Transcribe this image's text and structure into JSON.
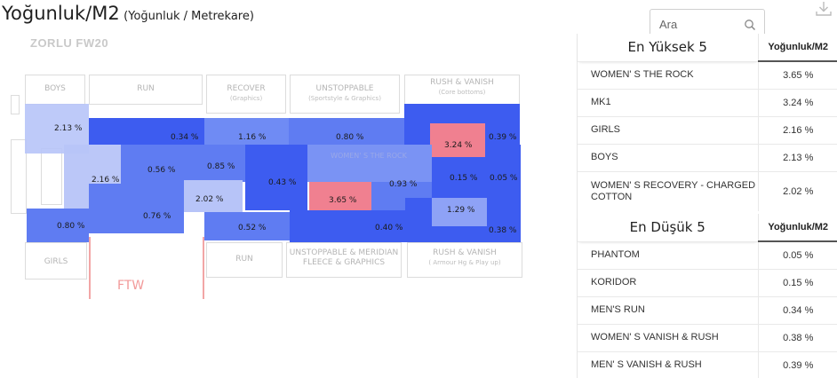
{
  "header": {
    "title": "Yoğunluk/M2",
    "subtitle": "(Yoğunluk / Metrekare)"
  },
  "search": {
    "placeholder": "Ara"
  },
  "floorplan": {
    "store_name": "ZORLU FW20",
    "walls": {
      "boys": "BOYS",
      "run_top": "RUN",
      "recover": "RECOVER",
      "recover_sub": "(Graphics)",
      "unstoppable": "UNSTOPPABLE",
      "unstoppable_sub": "(Sportstyle & Graphics)",
      "rush_top": "RUSH & VANISH",
      "rush_top_sub": "(Core bottoms)",
      "girls": "GIRLS",
      "run_bottom": "RUN",
      "meridian": "UNSTOPPABLE & MERIDIAN",
      "meridian_sub": "FLEECE & GRAPHICS",
      "rush_bottom": "RUSH & VANISH",
      "rush_bottom_sub": "( Armour Hg & Play up)",
      "ftw": "FTW",
      "ghost": "WOMEN' S THE ROCK"
    },
    "values": {
      "boys": "2.13 %",
      "mens_run": "0.34 %",
      "recover_top": "1.16 %",
      "unstoppable_top": "0.80 %",
      "mk1": "3.24 %",
      "mens_vanish_rush": "0.39 %",
      "girls_center": "2.16 %",
      "center_a": "0.56 %",
      "center_b": "0.85 %",
      "center_c": "0.43 %",
      "womens_recovery": "2.02 %",
      "womens_the_rock": "3.65 %",
      "right_mid": "0.93 %",
      "koridor": "0.15 %",
      "phantom": "0.05 %",
      "lower_left": "0.76 %",
      "right_low": "1.29 %",
      "bottom_left": "0.80 %",
      "bottom_run": "0.52 %",
      "bottom_meridian": "0.40 %",
      "womens_vanish_rush": "0.38 %"
    },
    "colors": {
      "high": "#f08090",
      "strong": "#3d5cf0",
      "medium": "#5f7cf2",
      "light": "#8ea2f6",
      "pale": "#b7c4f8"
    }
  },
  "top5": {
    "title": "En Yüksek 5",
    "col": "Yoğunluk/M2",
    "rows": [
      {
        "name": "WOMEN' S THE ROCK",
        "value": "3.65 %"
      },
      {
        "name": "MK1",
        "value": "3.24 %"
      },
      {
        "name": "GIRLS",
        "value": "2.16 %"
      },
      {
        "name": "BOYS",
        "value": "2.13 %"
      },
      {
        "name": "WOMEN' S RECOVERY - CHARGED COTTON",
        "value": "2.02 %"
      }
    ]
  },
  "bottom5": {
    "title": "En Düşük 5",
    "col": "Yoğunluk/M2",
    "rows": [
      {
        "name": "PHANTOM",
        "value": "0.05 %"
      },
      {
        "name": "KORIDOR",
        "value": "0.15 %"
      },
      {
        "name": "MEN'S RUN",
        "value": "0.34 %"
      },
      {
        "name": "WOMEN' S VANISH & RUSH",
        "value": "0.38 %"
      },
      {
        "name": "MEN' S VANISH & RUSH",
        "value": "0.39 %"
      }
    ]
  }
}
